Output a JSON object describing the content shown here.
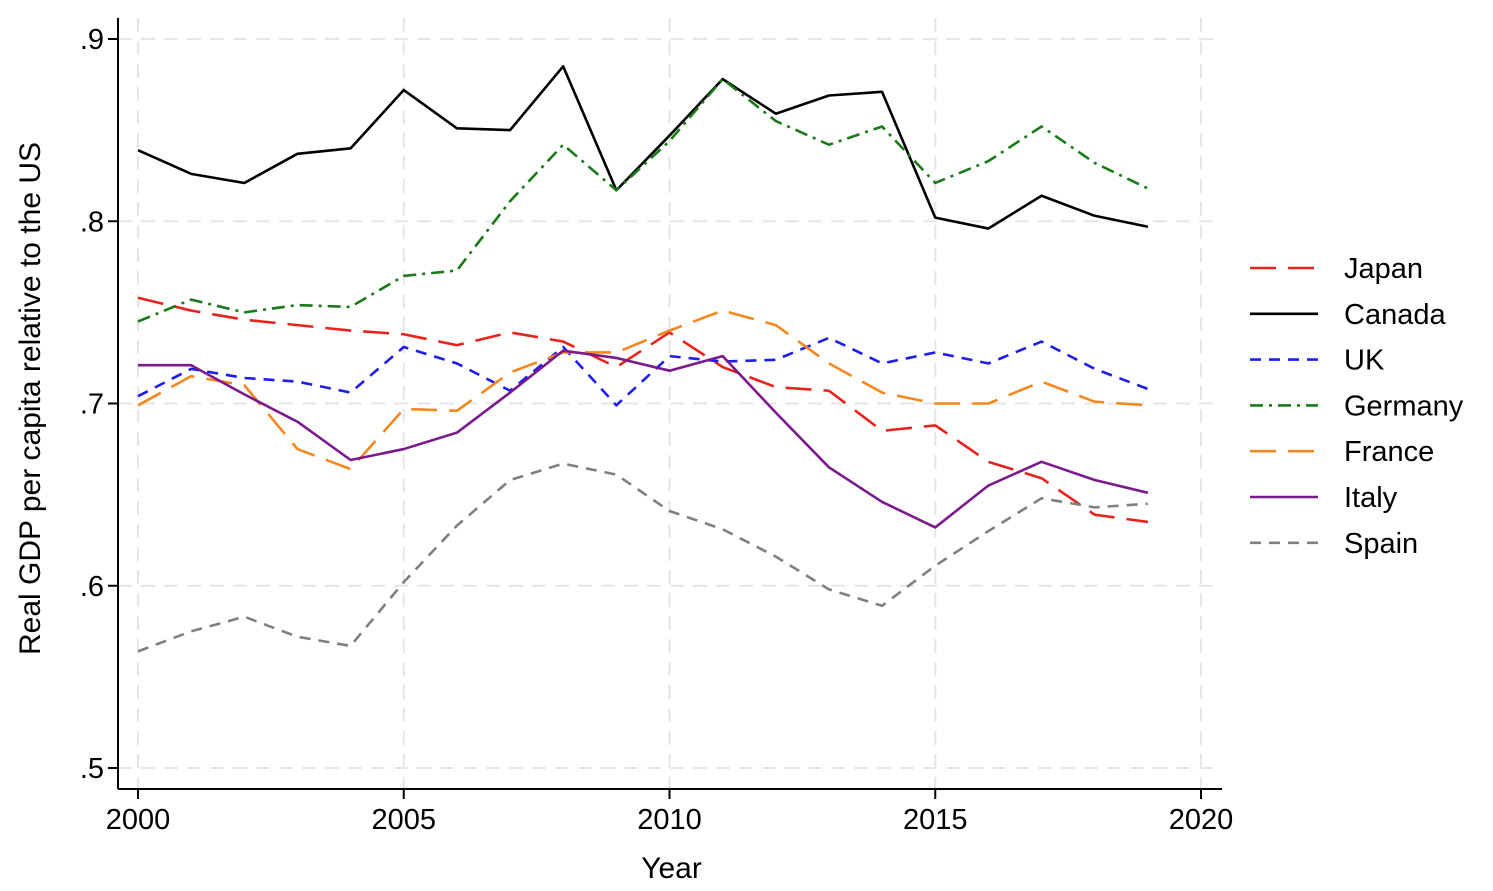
{
  "chart_data": {
    "type": "line",
    "title": "",
    "xlabel": "Year",
    "ylabel": "Real GDP per capita relative to the US",
    "x": [
      2000,
      2001,
      2002,
      2003,
      2004,
      2005,
      2006,
      2007,
      2008,
      2009,
      2010,
      2011,
      2012,
      2013,
      2014,
      2015,
      2016,
      2017,
      2018,
      2019
    ],
    "xlim": [
      2000,
      2020
    ],
    "ylim": [
      0.5,
      0.9
    ],
    "xticks": [
      2000,
      2005,
      2010,
      2015,
      2020
    ],
    "xtick_labels": [
      "2000",
      "2005",
      "2010",
      "2015",
      "2020"
    ],
    "yticks": [
      0.5,
      0.6,
      0.7,
      0.8,
      0.9
    ],
    "ytick_labels": [
      ".5",
      ".6",
      ".7",
      ".8",
      ".9"
    ],
    "grid": true,
    "legend_position": "right",
    "series": [
      {
        "name": "Japan",
        "color": "#e8231e",
        "dash": "long-dash",
        "values": [
          0.758,
          0.751,
          0.746,
          0.743,
          0.74,
          0.738,
          0.732,
          0.739,
          0.734,
          0.72,
          0.739,
          0.72,
          0.709,
          0.707,
          0.685,
          0.688,
          0.668,
          0.659,
          0.639,
          0.635
        ]
      },
      {
        "name": "Canada",
        "color": "#000000",
        "dash": "solid",
        "values": [
          0.839,
          0.826,
          0.821,
          0.837,
          0.84,
          0.872,
          0.851,
          0.85,
          0.885,
          0.817,
          0.847,
          0.878,
          0.859,
          0.869,
          0.871,
          0.802,
          0.796,
          0.814,
          0.803,
          0.797
        ]
      },
      {
        "name": "UK",
        "color": "#1e1ee8",
        "dash": "short-dash",
        "values": [
          0.704,
          0.719,
          0.714,
          0.712,
          0.706,
          0.731,
          0.722,
          0.707,
          0.731,
          0.699,
          0.726,
          0.723,
          0.724,
          0.736,
          0.722,
          0.728,
          0.722,
          0.734,
          0.719,
          0.708
        ]
      },
      {
        "name": "Germany",
        "color": "#1a7a1a",
        "dash": "dash-dot",
        "values": [
          0.745,
          0.757,
          0.75,
          0.754,
          0.753,
          0.77,
          0.773,
          0.811,
          0.842,
          0.817,
          0.844,
          0.878,
          0.855,
          0.842,
          0.852,
          0.821,
          0.833,
          0.852,
          0.832,
          0.818
        ]
      },
      {
        "name": "France",
        "color": "#f5871f",
        "dash": "long-dash",
        "values": [
          0.699,
          0.715,
          0.71,
          0.675,
          0.664,
          0.697,
          0.696,
          0.717,
          0.728,
          0.728,
          0.74,
          0.751,
          0.743,
          0.722,
          0.706,
          0.7,
          0.7,
          0.712,
          0.701,
          0.699
        ]
      },
      {
        "name": "Italy",
        "color": "#7a1a8c",
        "dash": "solid",
        "values": [
          0.721,
          0.721,
          0.705,
          0.69,
          0.669,
          0.675,
          0.684,
          0.706,
          0.729,
          0.725,
          0.718,
          0.726,
          0.695,
          0.665,
          0.646,
          0.632,
          0.655,
          0.668,
          0.658,
          0.651
        ]
      },
      {
        "name": "Spain",
        "color": "#808080",
        "dash": "short-dash",
        "values": [
          0.564,
          0.575,
          0.583,
          0.572,
          0.567,
          0.602,
          0.633,
          0.658,
          0.667,
          0.661,
          0.641,
          0.631,
          0.616,
          0.598,
          0.589,
          0.611,
          0.63,
          0.648,
          0.643,
          0.645
        ]
      }
    ]
  }
}
